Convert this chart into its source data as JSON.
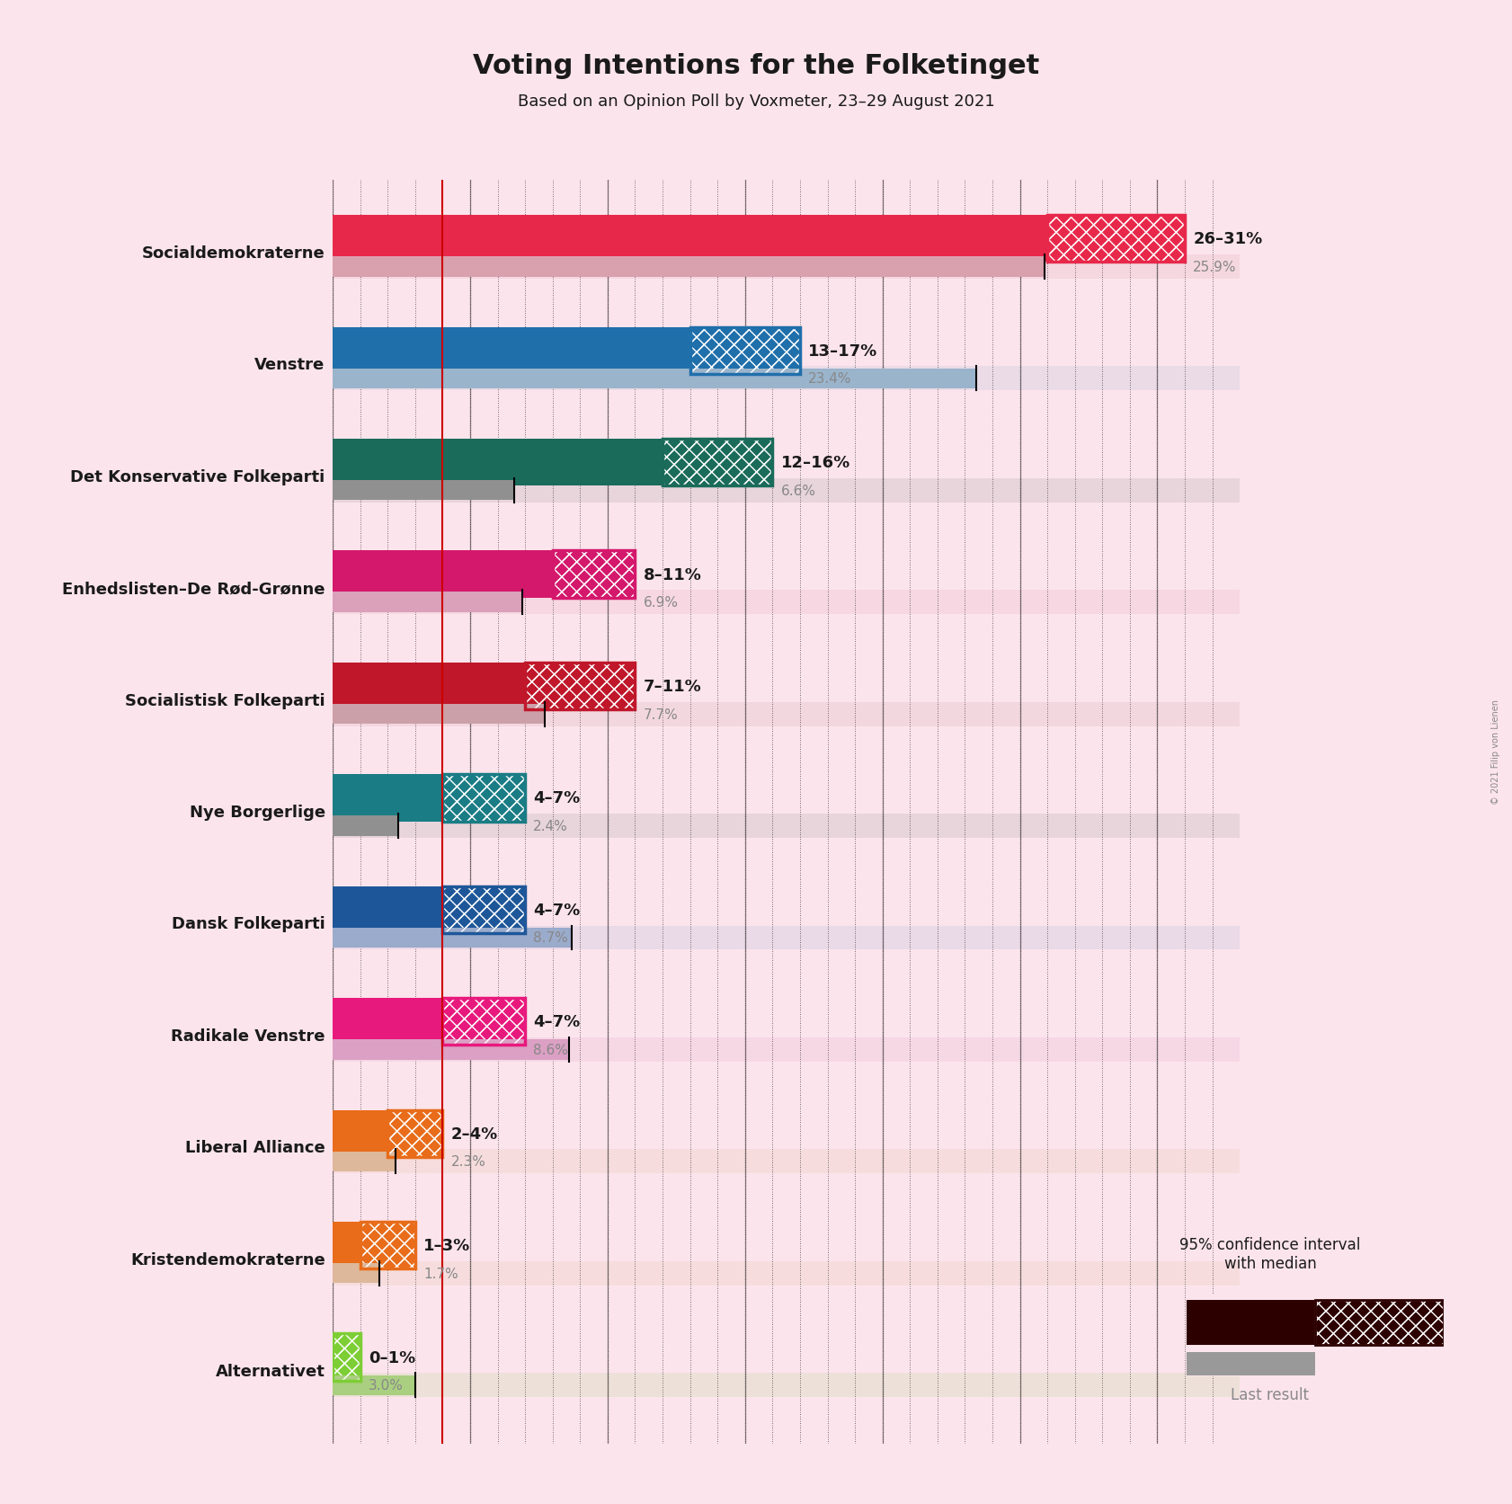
{
  "title": "Voting Intentions for the Folketinget",
  "subtitle": "Based on an Opinion Poll by Voxmeter, 23–29 August 2021",
  "background_color": "#fce4ec",
  "parties": [
    {
      "name": "Socialdemokraterne",
      "ci_low": 26,
      "ci_high": 31,
      "last_result": 25.9,
      "color": "#e8284a",
      "last_color": "#d9a0ae",
      "label": "26–31%",
      "last_label": "25.9%"
    },
    {
      "name": "Venstre",
      "ci_low": 13,
      "ci_high": 17,
      "last_result": 23.4,
      "color": "#1f6fab",
      "last_color": "#9ab4cc",
      "label": "13–17%",
      "last_label": "23.4%"
    },
    {
      "name": "Det Konservative Folkeparti",
      "ci_low": 12,
      "ci_high": 16,
      "last_result": 6.6,
      "color": "#1a6b5a",
      "last_color": "#909090",
      "label": "12–16%",
      "last_label": "6.6%"
    },
    {
      "name": "Enhedslisten–De Rød-Grønne",
      "ci_low": 8,
      "ci_high": 11,
      "last_result": 6.9,
      "color": "#d4186c",
      "last_color": "#dba0ba",
      "label": "8–11%",
      "last_label": "6.9%"
    },
    {
      "name": "Socialistisk Folkeparti",
      "ci_low": 7,
      "ci_high": 11,
      "last_result": 7.7,
      "color": "#c0172a",
      "last_color": "#cca0a8",
      "label": "7–11%",
      "last_label": "7.7%"
    },
    {
      "name": "Nye Borgerlige",
      "ci_low": 4,
      "ci_high": 7,
      "last_result": 2.4,
      "color": "#1a7c85",
      "last_color": "#909090",
      "label": "4–7%",
      "last_label": "2.4%"
    },
    {
      "name": "Dansk Folkeparti",
      "ci_low": 4,
      "ci_high": 7,
      "last_result": 8.7,
      "color": "#1e5799",
      "last_color": "#9aabcc",
      "label": "4–7%",
      "last_label": "8.7%"
    },
    {
      "name": "Radikale Venstre",
      "ci_low": 4,
      "ci_high": 7,
      "last_result": 8.6,
      "color": "#e8197d",
      "last_color": "#dba0c4",
      "label": "4–7%",
      "last_label": "8.6%"
    },
    {
      "name": "Liberal Alliance",
      "ci_low": 2,
      "ci_high": 4,
      "last_result": 2.3,
      "color": "#e86c1a",
      "last_color": "#ddb89a",
      "label": "2–4%",
      "last_label": "2.3%"
    },
    {
      "name": "Kristendemokraterne",
      "ci_low": 1,
      "ci_high": 3,
      "last_result": 1.7,
      "color": "#e86c1a",
      "last_color": "#ddb89a",
      "label": "1–3%",
      "last_label": "1.7%"
    },
    {
      "name": "Alternativet",
      "ci_low": 0,
      "ci_high": 1,
      "last_result": 3.0,
      "color": "#7dce35",
      "last_color": "#aacf80",
      "label": "0–1%",
      "last_label": "3.0%"
    }
  ],
  "xlim": [
    0,
    33
  ],
  "red_line_x": 4.0,
  "copyright": "© 2021 Filip von Lienen"
}
